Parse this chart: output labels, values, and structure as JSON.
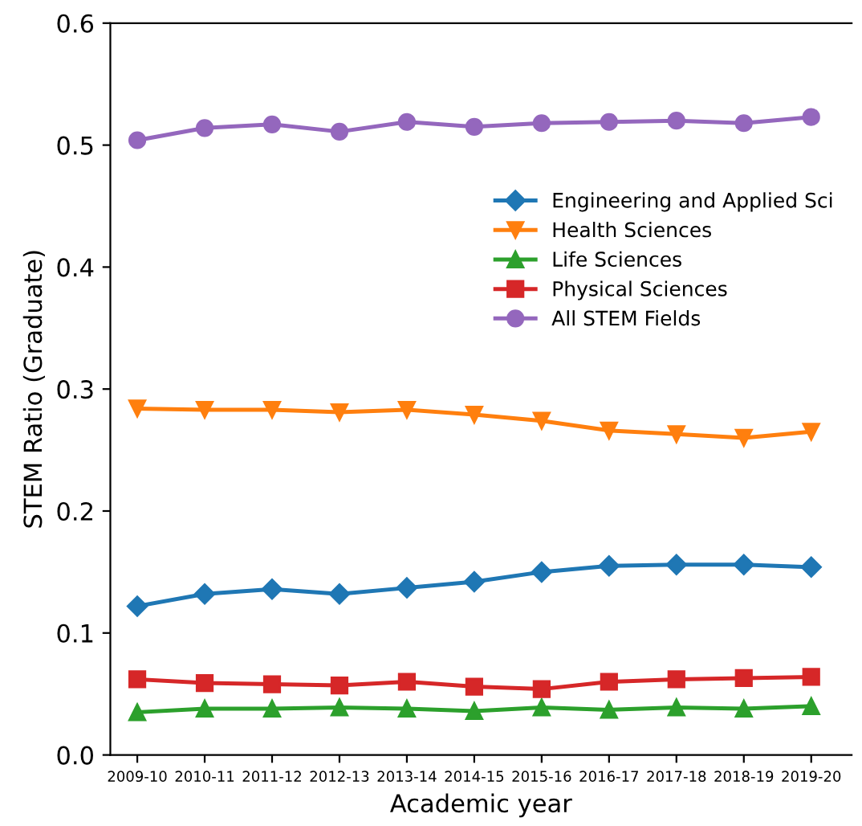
{
  "chart_data": {
    "type": "line",
    "xlabel": "Academic year",
    "ylabel": "STEM Ratio (Graduate)",
    "categories": [
      "2009-10",
      "2010-11",
      "2011-12",
      "2012-13",
      "2013-14",
      "2014-15",
      "2015-16",
      "2016-17",
      "2017-18",
      "2018-19",
      "2019-20"
    ],
    "ylim": [
      0,
      0.6
    ],
    "yticks": [
      {
        "value": 0,
        "label": "0.0"
      },
      0.1,
      0.2,
      0.3,
      0.4,
      0.5,
      0.6
    ],
    "legend": "center right",
    "grid": false,
    "series": [
      {
        "name": "Engineering and Applied Sci",
        "color": "#1f77b4",
        "marker": "diamond",
        "values": [
          0.122,
          0.132,
          0.136,
          0.132,
          0.137,
          0.142,
          0.15,
          0.155,
          0.156,
          0.156,
          0.154
        ]
      },
      {
        "name": "Health Sciences",
        "color": "#ff7f0e",
        "marker": "triangle_down",
        "values": [
          0.284,
          0.283,
          0.283,
          0.281,
          0.283,
          0.279,
          0.274,
          0.266,
          0.263,
          0.26,
          0.265
        ]
      },
      {
        "name": "Life Sciences",
        "color": "#2ca02c",
        "marker": "triangle",
        "values": [
          0.035,
          0.038,
          0.038,
          0.039,
          0.038,
          0.036,
          0.039,
          0.037,
          0.039,
          0.038,
          0.04
        ]
      },
      {
        "name": "Physical Sciences",
        "color": "#d62728",
        "marker": "square",
        "values": [
          0.062,
          0.059,
          0.058,
          0.057,
          0.06,
          0.056,
          0.054,
          0.06,
          0.062,
          0.063,
          0.064
        ]
      },
      {
        "name": "All STEM Fields",
        "color": "#9467bd",
        "marker": "circle",
        "values": [
          0.504,
          0.514,
          0.517,
          0.511,
          0.519,
          0.515,
          0.518,
          0.519,
          0.52,
          0.518,
          0.523
        ]
      }
    ]
  }
}
